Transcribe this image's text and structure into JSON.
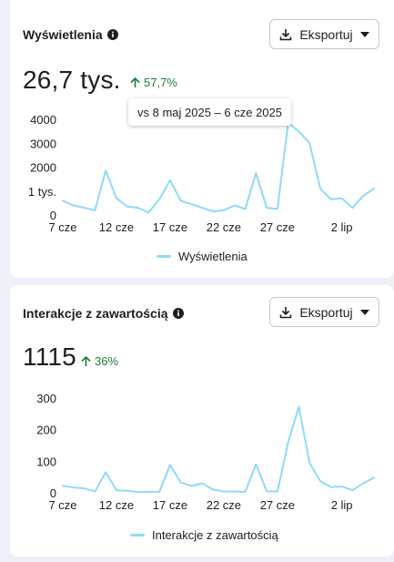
{
  "cards": [
    {
      "title": "Wyświetlenia",
      "export_label": "Eksportuj",
      "value": "26,7 tys.",
      "delta": "57,7%",
      "tooltip": "vs 8 maj 2025 – 6 cze 2025",
      "legend": "Wyświetlenia"
    },
    {
      "title": "Interakcje z zawartością",
      "export_label": "Eksportuj",
      "value": "1115",
      "delta": "36%",
      "legend": "Interakcje z zawartością"
    }
  ],
  "colors": {
    "line": "#8fd9f9",
    "positive": "#1f7a3a",
    "text": "#1c1e21",
    "axis": "#1c1e21"
  },
  "chart_data": [
    {
      "type": "line",
      "series": [
        {
          "name": "Wyświetlenia",
          "values": [
            600,
            400,
            300,
            200,
            1850,
            700,
            350,
            300,
            100,
            650,
            1450,
            600,
            450,
            300,
            150,
            200,
            400,
            250,
            1750,
            300,
            250,
            3850,
            3500,
            3000,
            1100,
            650,
            700,
            300,
            800,
            1100
          ]
        }
      ],
      "x_tick_labels": [
        "7 cze",
        "12 cze",
        "17 cze",
        "22 cze",
        "27 cze",
        "2 lip"
      ],
      "x_tick_index": [
        0,
        5,
        10,
        15,
        20,
        26
      ],
      "y_tick_labels": [
        "0",
        "1 tys.",
        "2000",
        "3000",
        "4000"
      ],
      "y_tick_values": [
        0,
        1000,
        2000,
        3000,
        4000
      ],
      "ylim": [
        0,
        4000
      ],
      "grid": false
    },
    {
      "type": "line",
      "series": [
        {
          "name": "Interakcje z zawartością",
          "values": [
            22,
            17,
            14,
            4,
            65,
            8,
            7,
            2,
            3,
            3,
            88,
            33,
            22,
            30,
            10,
            4,
            4,
            3,
            90,
            5,
            4,
            160,
            272,
            95,
            37,
            18,
            20,
            8,
            30,
            48
          ]
        }
      ],
      "x_tick_labels": [
        "7 cze",
        "12 cze",
        "17 cze",
        "22 cze",
        "27 cze",
        "2 lip"
      ],
      "x_tick_index": [
        0,
        5,
        10,
        15,
        20,
        26
      ],
      "y_tick_labels": [
        "0",
        "100",
        "200",
        "300"
      ],
      "y_tick_values": [
        0,
        100,
        200,
        300
      ],
      "ylim": [
        0,
        300
      ],
      "grid": false
    }
  ]
}
